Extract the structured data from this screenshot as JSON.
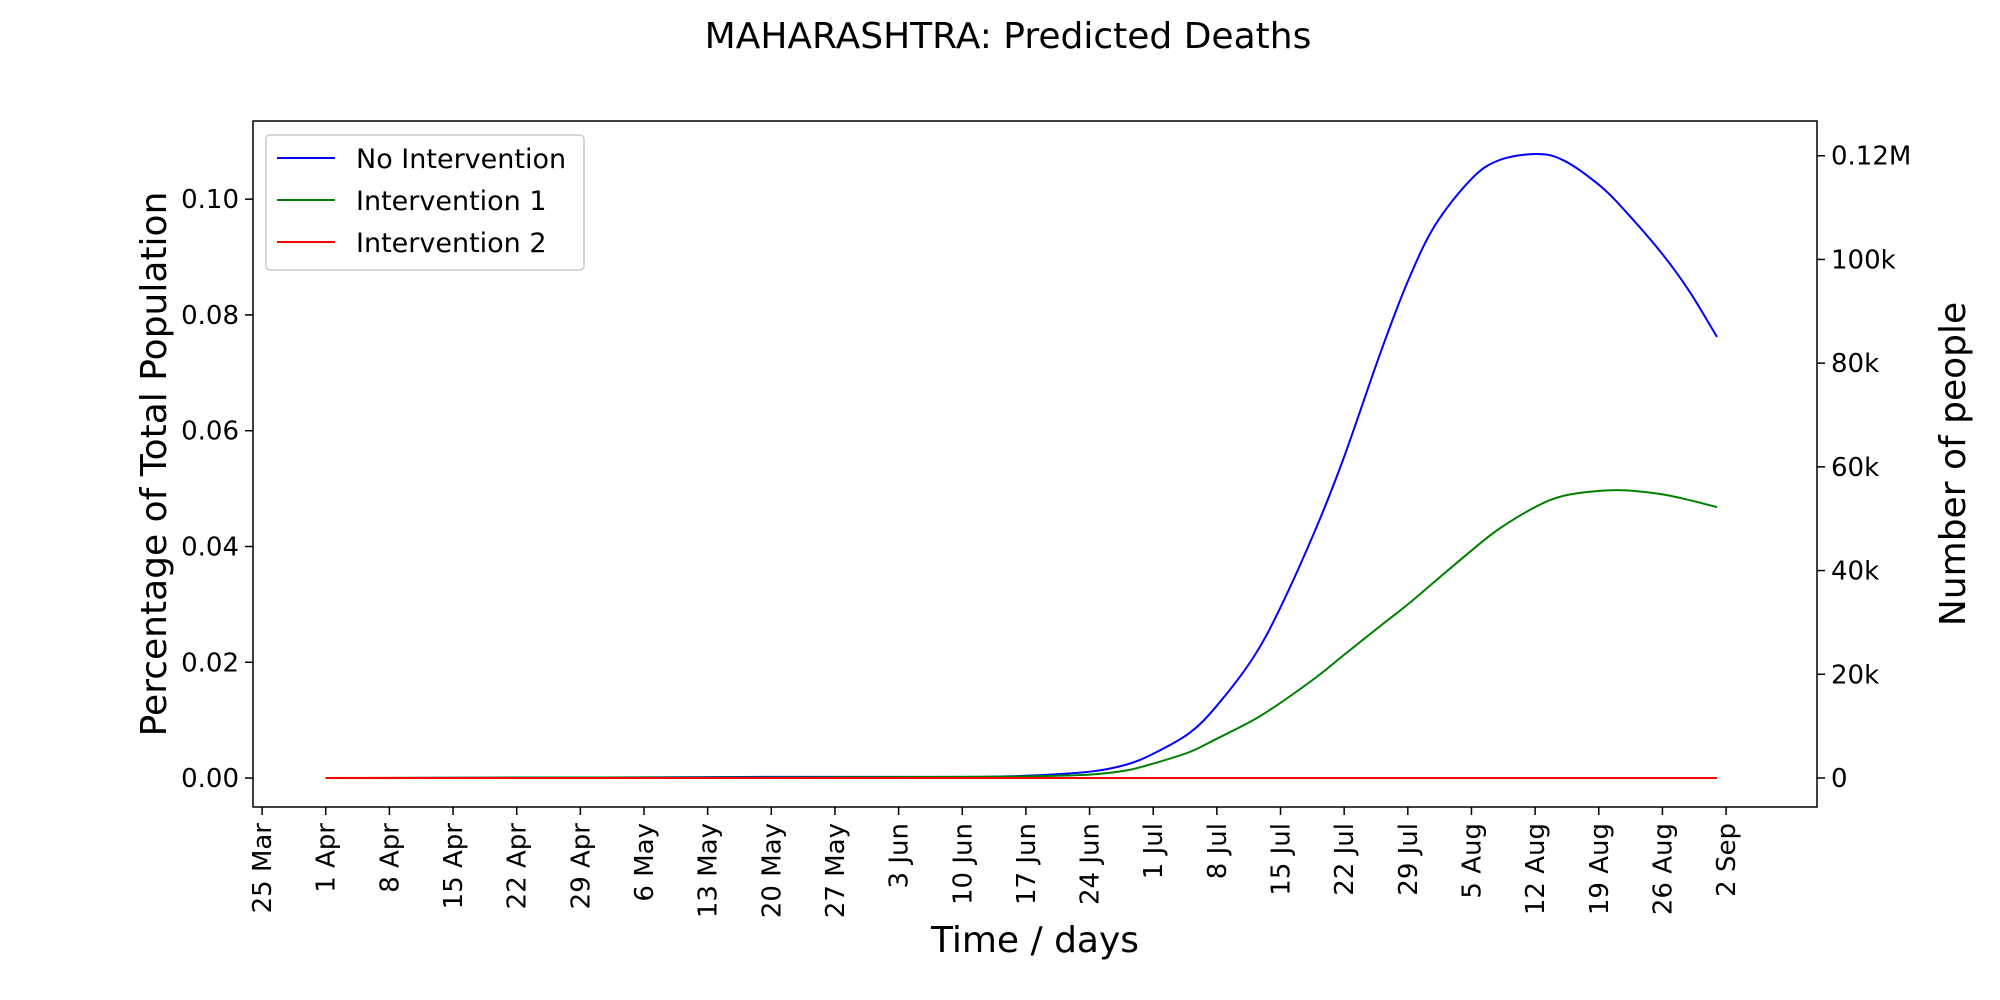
{
  "chart_data": {
    "type": "line",
    "title": "MAHARASHTRA: Predicted Deaths",
    "xlabel": "Time / days",
    "ylabel": "Percentage of Total Population",
    "y2label": "Number of people",
    "legend_position": "top-left",
    "grid": false,
    "x_unit": "date (2020)",
    "xlim": [
      "2020-03-24",
      "2020-09-12"
    ],
    "ylim": [
      -0.005,
      0.1135
    ],
    "y2lim": [
      -5600,
      126700
    ],
    "x_ticks": [
      "25 Mar",
      "1 Apr",
      "8 Apr",
      "15 Apr",
      "22 Apr",
      "29 Apr",
      "6 May",
      "13 May",
      "20 May",
      "27 May",
      "3 Jun",
      "10 Jun",
      "17 Jun",
      "24 Jun",
      "1 Jul",
      "8 Jul",
      "15 Jul",
      "22 Jul",
      "29 Jul",
      "5 Aug",
      "12 Aug",
      "19 Aug",
      "26 Aug",
      "2 Sep"
    ],
    "x_tick_dates": [
      "2020-03-25",
      "2020-04-01",
      "2020-04-08",
      "2020-04-15",
      "2020-04-22",
      "2020-04-29",
      "2020-05-06",
      "2020-05-13",
      "2020-05-20",
      "2020-05-27",
      "2020-06-03",
      "2020-06-10",
      "2020-06-17",
      "2020-06-24",
      "2020-07-01",
      "2020-07-08",
      "2020-07-15",
      "2020-07-22",
      "2020-07-29",
      "2020-08-05",
      "2020-08-12",
      "2020-08-19",
      "2020-08-26",
      "2020-09-02"
    ],
    "y_ticks": [
      0.0,
      0.02,
      0.04,
      0.06,
      0.08,
      0.1
    ],
    "y_tick_labels": [
      "0.00",
      "0.02",
      "0.04",
      "0.06",
      "0.08",
      "0.10"
    ],
    "y2_ticks": [
      0,
      20000,
      40000,
      60000,
      80000,
      100000,
      120000
    ],
    "y2_tick_labels": [
      "0",
      "20k",
      "40k",
      "60k",
      "80k",
      "100k",
      "0.12M"
    ],
    "x": [
      "2020-04-01",
      "2020-05-01",
      "2020-05-20",
      "2020-06-10",
      "2020-06-17",
      "2020-06-24",
      "2020-06-28",
      "2020-07-01",
      "2020-07-05",
      "2020-07-08",
      "2020-07-12",
      "2020-07-15",
      "2020-07-19",
      "2020-07-22",
      "2020-07-26",
      "2020-07-29",
      "2020-08-01",
      "2020-08-05",
      "2020-08-08",
      "2020-08-12",
      "2020-08-15",
      "2020-08-19",
      "2020-08-22",
      "2020-08-26",
      "2020-08-29",
      "2020-09-01"
    ],
    "series": [
      {
        "name": "No Intervention",
        "color": "#0000ff",
        "values": [
          0,
          0.0001,
          0.0002,
          0.0002,
          0.0004,
          0.0011,
          0.0023,
          0.0042,
          0.0078,
          0.0125,
          0.0208,
          0.0295,
          0.0435,
          0.0555,
          0.0735,
          0.0858,
          0.0955,
          0.1035,
          0.1067,
          0.1078,
          0.1068,
          0.1025,
          0.0978,
          0.0905,
          0.084,
          0.0762
        ]
      },
      {
        "name": "Intervention 1",
        "color": "#008000",
        "values": [
          0,
          0.0001,
          0.0001,
          0.0002,
          0.0003,
          0.0006,
          0.0013,
          0.0025,
          0.0045,
          0.0068,
          0.01,
          0.013,
          0.0175,
          0.0213,
          0.0263,
          0.03,
          0.034,
          0.0393,
          0.043,
          0.0468,
          0.0487,
          0.0496,
          0.0497,
          0.049,
          0.048,
          0.0468
        ]
      },
      {
        "name": "Intervention 2",
        "color": "#ff0000",
        "values": [
          0,
          0,
          0,
          0,
          0,
          0,
          0,
          0,
          0,
          0,
          0,
          0,
          0,
          0,
          0,
          0,
          0,
          0,
          0,
          0,
          0,
          0,
          0,
          0,
          0,
          0
        ]
      }
    ]
  }
}
